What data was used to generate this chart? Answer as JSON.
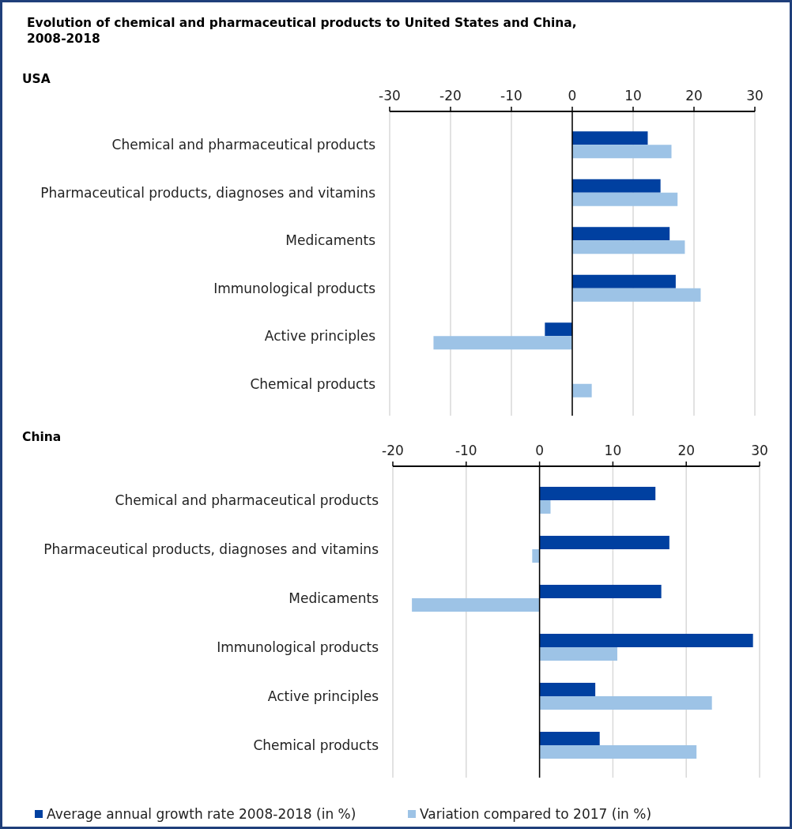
{
  "chart_data": [
    {
      "type": "bar",
      "orientation": "horizontal",
      "title": "Evolution of chemical and pharmaceutical products to United States and China, 2008-2018",
      "subtitle": "USA",
      "categories": [
        "Chemical and pharmaceutical products",
        "Pharmaceutical products, diagnoses and vitamins",
        "Medicaments",
        "Immunological products",
        "Active principles",
        "Chemical products"
      ],
      "series": [
        {
          "color": "#0040a0",
          "values": [
            12.4,
            14.5,
            16.0,
            17.0,
            -4.5,
            null
          ]
        },
        {
          "color": "#9dc3e6",
          "values": [
            16.3,
            17.3,
            18.5,
            21.1,
            -22.8,
            3.2
          ]
        }
      ],
      "xlim": [
        -30,
        30
      ],
      "xticks": [
        -30,
        -20,
        -10,
        0,
        10,
        20,
        30
      ],
      "grid": "x",
      "legend": false
    },
    {
      "type": "bar",
      "orientation": "horizontal",
      "title": "China",
      "categories": [
        "Chemical and pharmaceutical products",
        "Pharmaceutical products, diagnoses and vitamins",
        "Medicaments",
        "Immunological products",
        "Active principles",
        "Chemical products"
      ],
      "series": [
        {
          "name": "Average annual growth rate 2008-2018 (in %)",
          "color": "#0040a0",
          "values": [
            15.8,
            17.7,
            16.6,
            29.1,
            7.6,
            8.2
          ]
        },
        {
          "name": "Variation compared to 2017 (in %)",
          "color": "#9dc3e6",
          "values": [
            1.5,
            -1.0,
            -17.4,
            10.6,
            23.5,
            21.4
          ]
        }
      ],
      "xlim": [
        -20,
        30
      ],
      "xticks": [
        -20,
        -10,
        0,
        10,
        20,
        30
      ],
      "grid": "x",
      "legend": "bottom"
    }
  ]
}
